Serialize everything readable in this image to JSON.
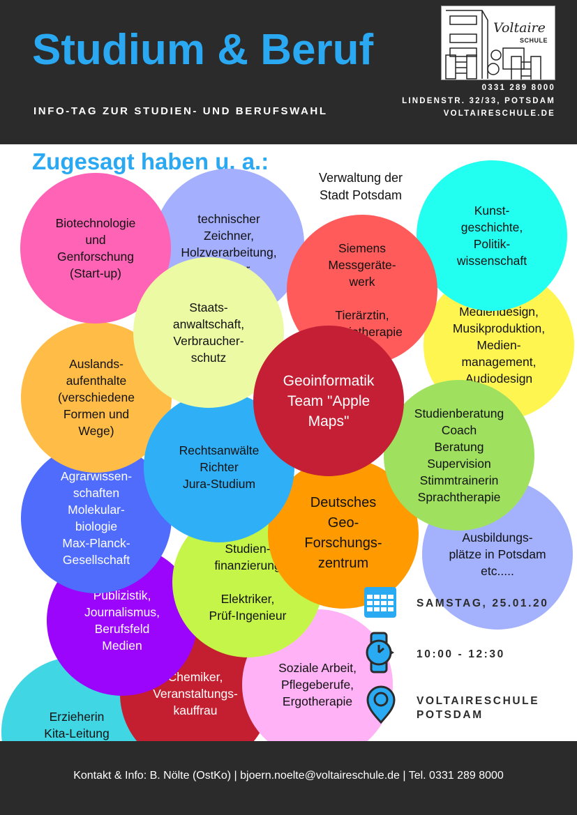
{
  "header": {
    "title": "Studium & Beruf",
    "subtitle": "INFO-TAG ZUR STUDIEN- UND BERUFSWAHL",
    "logo_text": "Voltaire",
    "logo_subtext": "SCHULE",
    "phone": "0331 289 8000",
    "address": "LINDENSTR. 32/33, POTSDAM",
    "website": "VOLTAIRESCHULE.DE"
  },
  "main": {
    "heading": "Zugesagt haben u. a.:",
    "free_text": "Verwaltung der\nStadt Potsdam",
    "circles": [
      {
        "text": "Erzieherin\nKita-Leitung",
        "color": "#40d6e4"
      },
      {
        "text": "Chemiker,\nVeranstaltungs-\nkauffrau",
        "color": "#c41f30",
        "light": true
      },
      {
        "text": "Soziale Arbeit,\nPflegeberufe,\nErgotherapie",
        "color": "#ffb3f6"
      },
      {
        "text": "Publizistik,\nJournalismus,\nBerufsfeld\nMedien",
        "color": "#9b05fb",
        "light": true
      },
      {
        "text": "Studien-\nfinanzierung\n\nElektriker,\nPrüf-Ingenieur",
        "color": "#c5f548"
      },
      {
        "text": "Agrarwissen-\nschaften\nMolekular-\nbiologie\nMax-Planck-\nGesellschaft",
        "color": "#4f6cfd",
        "light": true
      },
      {
        "text": "Ausbildungs-\nplätze in Potsdam\netc.....",
        "color": "#a4b2fd"
      },
      {
        "text": "Deutsches\nGeo-\nForschungs-\nzentrum",
        "color": "#ff9a00"
      },
      {
        "text": "Auslands-\naufenthalte\n(verschiedene\nFormen und\nWege)",
        "color": "#ffbd48"
      },
      {
        "text": "Rechtsanwälte\nRichter\nJura-Studium",
        "color": "#2fb0f6"
      },
      {
        "text": "Mediendesign,\nMusikproduktion,\nMedien-\nmanagement,\nAudiodesign",
        "color": "#fff551"
      },
      {
        "text": "Studienberatung\nCoach\nBeratung\nSupervision\nStimmtrainerin\nSprachtherapie",
        "color": "#9fe05f"
      },
      {
        "text": "technischer\nZeichner,\nHolzverarbeitung,\nTischler",
        "color": "#a4affd"
      },
      {
        "text": "Kunst-\ngeschichte,\nPolitik-\nwissenschaft",
        "color": "#22fff0"
      },
      {
        "text": "Biotechnologie\nund\nGenforschung\n(Start-up)",
        "color": "#ff63b6"
      },
      {
        "text": "Staats-\nanwaltschaft,\nVerbraucher-\nschutz",
        "color": "#ecfaa3"
      },
      {
        "text": "Siemens\nMessgeräte-\nwerk\n\nTierärztin,\nPhysiotherapie",
        "color": "#ff5b5b",
        "light": false
      },
      {
        "text": "Geoinformatik\nTeam \"Apple\nMaps\"",
        "color": "#c41f34",
        "light": true
      }
    ],
    "event": {
      "date": "SAMSTAG, 25.01.20",
      "time": "10:00 - 12:30",
      "location": "VOLTAIRESCHULE\nPOTSDAM",
      "icons": [
        "calendar-icon",
        "watch-icon",
        "map-pin-icon"
      ],
      "icon_color": "#2aaaf2"
    }
  },
  "footer": {
    "text": "Kontakt & Info: B. Nölte (OstKo) | bjoern.noelte@voltaireschule.de | Tel. 0331 289 8000"
  }
}
